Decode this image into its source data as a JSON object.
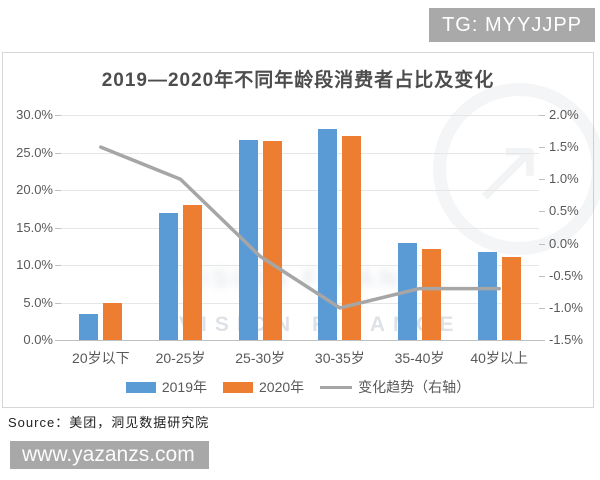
{
  "page": {
    "tg_badge": "TG: MYYJJPP",
    "source_label": "Source：美团，洞见数据研究院",
    "watermark_url": "www.yazanzs.com",
    "watermark_brand": "VISION FINANCE"
  },
  "chart_data": {
    "type": "bar",
    "subtype": "grouped-bars-with-line",
    "title": "2019—2020年不同年龄段消费者占比及变化",
    "categories": [
      "20岁以下",
      "20-25岁",
      "25-30岁",
      "30-35岁",
      "35-40岁",
      "40岁以上"
    ],
    "series": [
      {
        "name": "2019年",
        "type": "bar",
        "axis": "left",
        "color": "#5B9BD5",
        "values": [
          3.5,
          17.0,
          26.7,
          28.2,
          12.9,
          11.8
        ]
      },
      {
        "name": "2020年",
        "type": "bar",
        "axis": "left",
        "color": "#ED7D31",
        "values": [
          5.0,
          18.0,
          26.5,
          27.2,
          12.2,
          11.1
        ]
      },
      {
        "name": "变化趋势（右轴）",
        "type": "line",
        "axis": "right",
        "color": "#A6A6A6",
        "values": [
          1.5,
          1.0,
          -0.2,
          -1.0,
          -0.7,
          -0.7
        ]
      }
    ],
    "left_axis": {
      "min": 0,
      "max": 30,
      "step": 5,
      "ticks": [
        "30.0%",
        "25.0%",
        "20.0%",
        "15.0%",
        "10.0%",
        "5.0%",
        "0.0%"
      ]
    },
    "right_axis": {
      "min": -1.5,
      "max": 2.0,
      "step": 0.5,
      "ticks": [
        "2.0%",
        "1.5%",
        "1.0%",
        "0.5%",
        "0.0%",
        "-0.5%",
        "-1.0%",
        "-1.5%"
      ]
    },
    "grid": true,
    "legend_position": "bottom",
    "units": "percent"
  }
}
